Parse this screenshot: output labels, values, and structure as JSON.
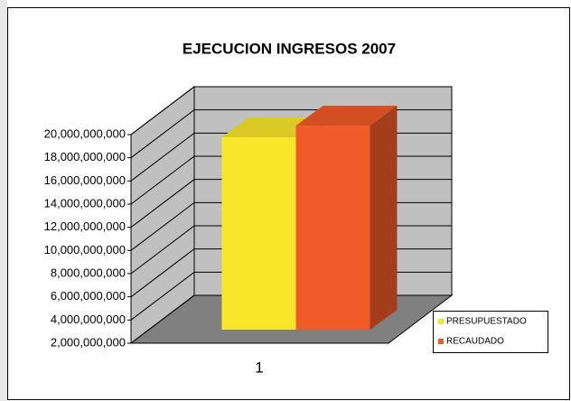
{
  "chart_data": {
    "type": "bar3d",
    "title": "EJECUCION  INGRESOS 2007",
    "categories": [
      "1"
    ],
    "series": [
      {
        "name": "PRESUPUESTADO",
        "color": "#f7e62a",
        "values": [
          18600000000
        ]
      },
      {
        "name": "RECAUDADO",
        "color": "#f05a28",
        "values": [
          19600000000
        ]
      }
    ],
    "ylim": [
      2000000000,
      20000000000
    ],
    "yticks": [
      {
        "value": 2000000000,
        "label": "2,000,000,000"
      },
      {
        "value": 4000000000,
        "label": "4,000,000,000"
      },
      {
        "value": 6000000000,
        "label": "6,000,000,000"
      },
      {
        "value": 8000000000,
        "label": "8,000,000,000"
      },
      {
        "value": 10000000000,
        "label": "10,000,000,000"
      },
      {
        "value": 12000000000,
        "label": "12,000,000,000"
      },
      {
        "value": 14000000000,
        "label": "14,000,000,000"
      },
      {
        "value": 16000000000,
        "label": "16,000,000,000"
      },
      {
        "value": 18000000000,
        "label": "18,000,000,000"
      },
      {
        "value": 20000000000,
        "label": "20,000,000,000"
      }
    ],
    "grid": true,
    "legend": "right"
  }
}
